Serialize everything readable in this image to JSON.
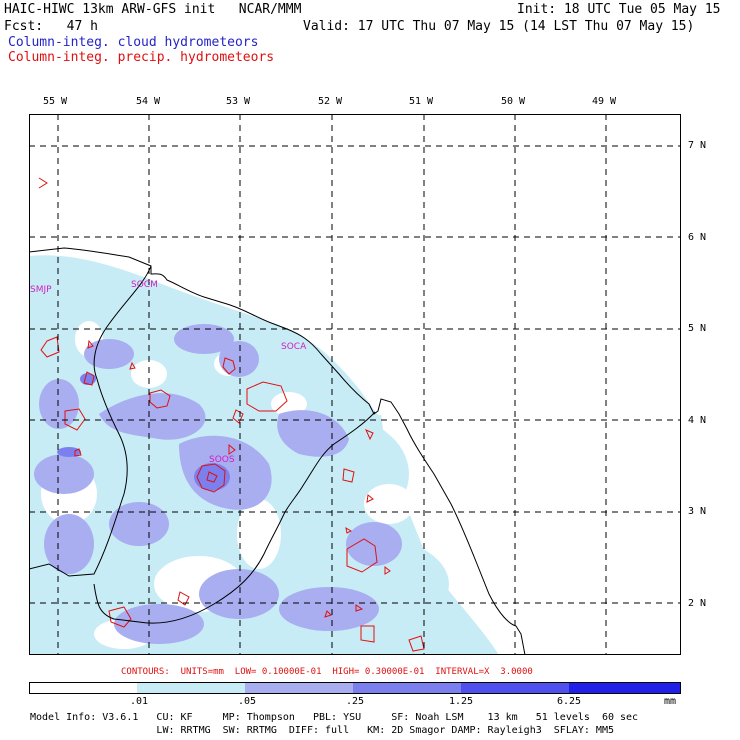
{
  "header": {
    "title": "HAIC-HIWC 13km ARW-GFS init   NCAR/MMM",
    "init": "Init: 18 UTC Tue 05 May 15",
    "fcst": "Fcst:   47 h",
    "valid": "Valid: 17 UTC Thu 07 May 15 (14 LST Thu 07 May 15)",
    "legend_cloud": "Column-integ. cloud hydrometeors",
    "legend_precip": "Column-integ. precip. hydrometeors"
  },
  "colors": {
    "cloud_text": "#2424c8",
    "precip_text": "#e01010",
    "contour": "#e01010",
    "shade_1": "#c8ecf6",
    "shade_2": "#a8aef0",
    "shade_3": "#7b80ee",
    "shade_4": "#5050ee",
    "shade_5": "#2020e8",
    "station": "#d020c0"
  },
  "map": {
    "lon_labels": [
      "55 W",
      "54 W",
      "53 W",
      "52 W",
      "51 W",
      "50 W",
      "49 W"
    ],
    "lat_labels": [
      "7 N",
      "6 N",
      "5 N",
      "4 N",
      "3 N",
      "2 N"
    ],
    "stations": [
      "SMJP",
      "SOCM",
      "SOCA",
      "SOOS"
    ]
  },
  "contour_info": "CONTOURS:  UNITS=mm  LOW= 0.10000E-01  HIGH= 0.30000E-01  INTERVAL=X  3.0000",
  "colorbar": {
    "labels": [
      ".01",
      ".05",
      ".25",
      "1.25",
      "6.25"
    ],
    "units": "mm"
  },
  "footer": {
    "line1": "Model Info: V3.6.1   CU: KF     MP: Thompson   PBL: YSU     SF: Noah LSM    13 km   51 levels  60 sec",
    "line2": "                     LW: RRTMG  SW: RRTMG  DIFF: full   KM: 2D Smagor DAMP: Rayleigh3  SFLAY: MM5"
  }
}
